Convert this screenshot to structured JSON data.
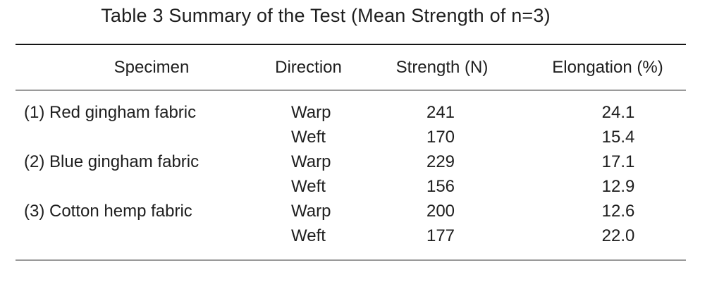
{
  "title": "Table 3 Summary of the Test (Mean Strength of n=3)",
  "table": {
    "columns": [
      "Specimen",
      "Direction",
      "Strength (N)",
      "Elongation (%)"
    ],
    "specimens": [
      {
        "name": "(1) Red gingham fabric",
        "rows": [
          {
            "direction": "Warp",
            "strength": "241",
            "elongation": "24.1"
          },
          {
            "direction": "Weft",
            "strength": "170",
            "elongation": "15.4"
          }
        ]
      },
      {
        "name": "(2) Blue gingham fabric",
        "rows": [
          {
            "direction": "Warp",
            "strength": "229",
            "elongation": "17.1"
          },
          {
            "direction": "Weft",
            "strength": "156",
            "elongation": "12.9"
          }
        ]
      },
      {
        "name": "(3) Cotton hemp fabric",
        "rows": [
          {
            "direction": "Warp",
            "strength": "200",
            "elongation": "12.6"
          },
          {
            "direction": "Weft",
            "strength": "177",
            "elongation": "22.0"
          }
        ]
      }
    ]
  },
  "colors": {
    "text": "#1e1e1e",
    "rule_dark": "#151515",
    "rule_gray": "#9a9a9a"
  }
}
